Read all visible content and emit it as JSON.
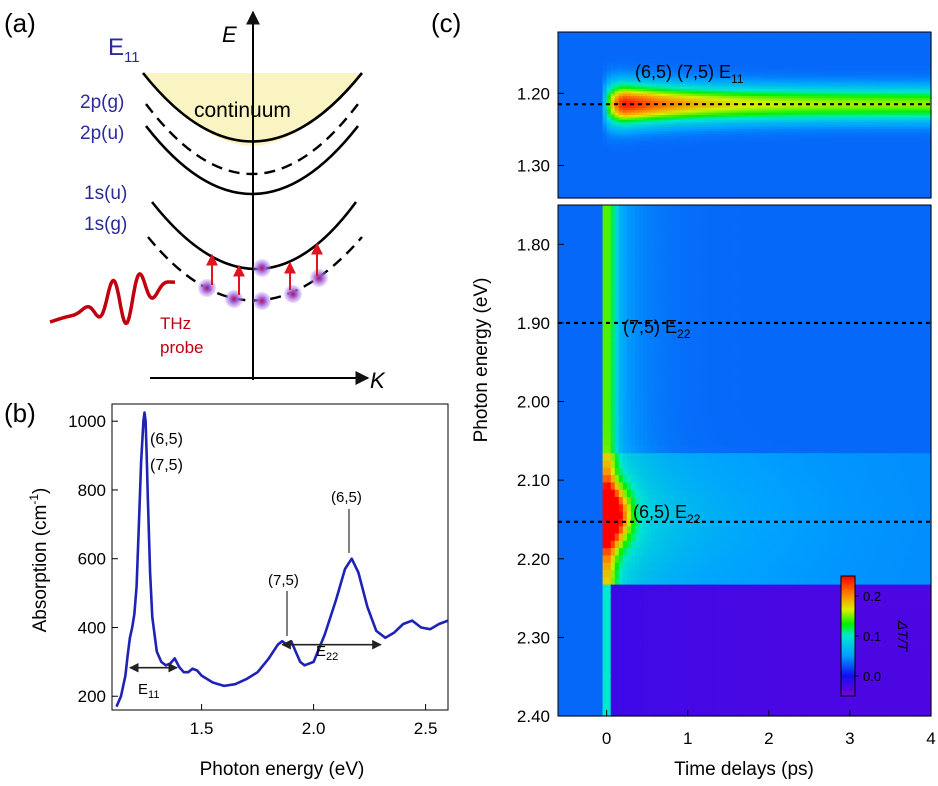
{
  "panel_labels": {
    "a": "(a)",
    "b": "(b)",
    "c": "(c)"
  },
  "panel_a": {
    "band_label": "E",
    "band_sub": "11",
    "energy_axis": "E",
    "momentum_axis": "K",
    "continuum": "continuum",
    "levels": [
      "2p(g)",
      "2p(u)",
      "1s(u)",
      "1s(g)"
    ],
    "thz_line1": "THz",
    "thz_line2": "probe",
    "colors": {
      "level_text": "#2b2b9a",
      "thz": "#c0000e",
      "continuum_fill": "#f9f4c2",
      "exciton": "#b889f0"
    }
  },
  "chart_data": [
    {
      "type": "line",
      "title": "",
      "xlabel": "Photon energy (eV)",
      "ylabel": "Absorption (cm",
      "ylabel_sup": "-1",
      "ylabel_close": ")",
      "xlim": [
        1.1,
        2.6
      ],
      "ylim": [
        160,
        1050
      ],
      "x_ticks": [
        "1.5",
        "2.0",
        "2.5"
      ],
      "y_ticks": [
        "200",
        "400",
        "600",
        "800",
        "1000"
      ],
      "series": [
        {
          "name": "Absorption",
          "color": "#1f23b5",
          "x": [
            1.12,
            1.14,
            1.16,
            1.17,
            1.18,
            1.19,
            1.2,
            1.21,
            1.22,
            1.23,
            1.24,
            1.245,
            1.25,
            1.255,
            1.26,
            1.27,
            1.28,
            1.3,
            1.32,
            1.34,
            1.36,
            1.38,
            1.4,
            1.42,
            1.44,
            1.46,
            1.48,
            1.5,
            1.55,
            1.6,
            1.65,
            1.7,
            1.75,
            1.8,
            1.84,
            1.86,
            1.88,
            1.9,
            1.92,
            1.94,
            1.96,
            2.0,
            2.05,
            2.1,
            2.14,
            2.17,
            2.2,
            2.24,
            2.28,
            2.32,
            2.36,
            2.4,
            2.44,
            2.48,
            2.52,
            2.56,
            2.6
          ],
          "y": [
            170,
            200,
            260,
            320,
            370,
            400,
            440,
            520,
            700,
            880,
            1000,
            1025,
            1000,
            900,
            780,
            560,
            430,
            330,
            300,
            290,
            295,
            310,
            285,
            270,
            270,
            280,
            275,
            260,
            240,
            230,
            235,
            250,
            270,
            310,
            350,
            360,
            350,
            360,
            330,
            300,
            290,
            300,
            380,
            480,
            570,
            600,
            560,
            460,
            390,
            370,
            385,
            410,
            420,
            400,
            395,
            410,
            420
          ]
        }
      ],
      "annotations": [
        {
          "text": "(6,5)",
          "x": 1.25,
          "y": 1025
        },
        {
          "text": "(7,5)",
          "x": 1.25,
          "y": 1025
        },
        {
          "text": "(7,5)",
          "x": 1.9,
          "y": 360
        },
        {
          "text": "(6,5)",
          "x": 2.17,
          "y": 600
        }
      ],
      "ranges": [
        {
          "label": "E",
          "sub": "11",
          "from": 1.18,
          "to": 1.39,
          "y": 283
        },
        {
          "label": "E",
          "sub": "22",
          "from": 1.86,
          "to": 2.3,
          "y": 350
        }
      ]
    },
    {
      "type": "heatmap",
      "title": "",
      "xlabel": "Time delays (ps)",
      "ylabel": "Photon energy (eV)",
      "xlim": [
        -0.6,
        4.0
      ],
      "x_ticks": [
        "0",
        "1",
        "2",
        "3",
        "4"
      ],
      "upper_panel": {
        "ylim": [
          1.115,
          1.345
        ],
        "y_ticks": [
          "1.20",
          "1.30"
        ]
      },
      "lower_panel": {
        "ylim": [
          1.75,
          2.4
        ],
        "y_ticks": [
          "1.80",
          "1.90",
          "2.00",
          "2.10",
          "2.20",
          "2.30",
          "2.40"
        ]
      },
      "reference_lines": [
        {
          "y": 1.215,
          "label": "(6,5) (7,5) E",
          "sub": "11"
        },
        {
          "y": 1.9,
          "label": "(7,5) E",
          "sub": "22"
        },
        {
          "y": 2.153,
          "label": "(6,5) E",
          "sub": "22"
        }
      ],
      "colorbar": {
        "label": "ΔT/T",
        "range": [
          -0.05,
          0.25
        ],
        "ticks": [
          "0.0",
          "0.1",
          "0.2"
        ]
      },
      "features": {
        "e11_peak_energy": 1.215,
        "e11_peak_time": 0.2,
        "e11_peak_value": 0.25,
        "e22_peak_energy": 2.145,
        "e22_peak_time": 0.05,
        "e22_peak_value": 0.21,
        "negative_region_energy_min": 2.235,
        "negative_region_value": -0.03
      }
    }
  ]
}
